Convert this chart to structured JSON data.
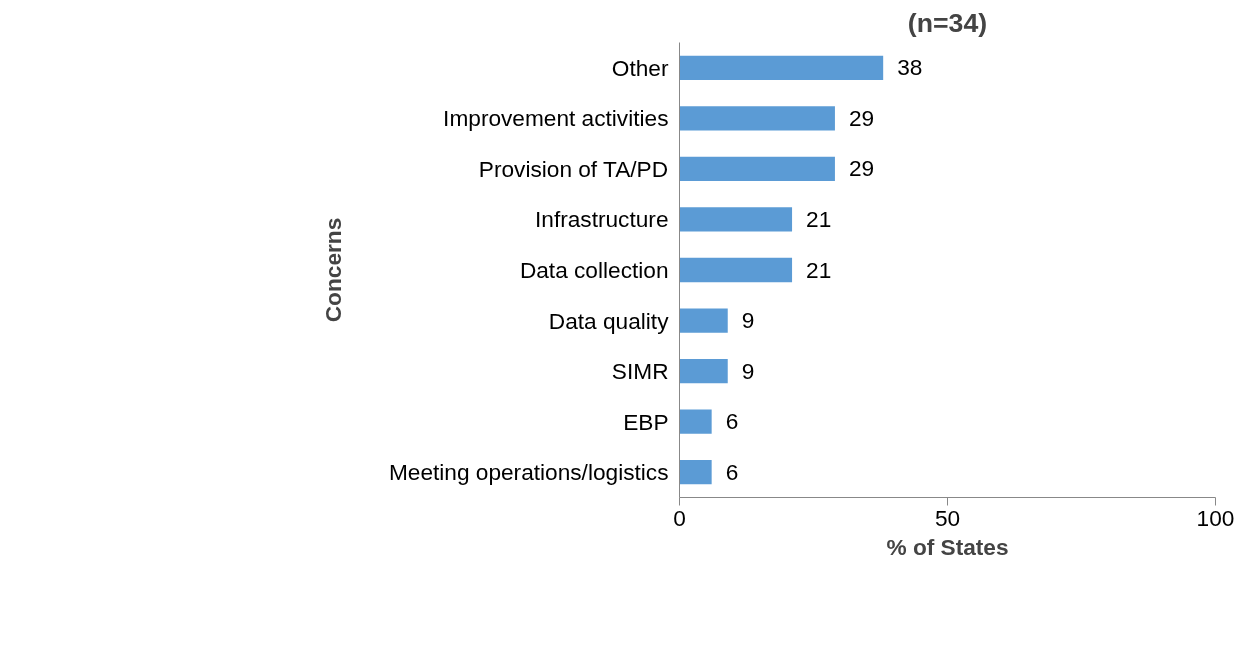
{
  "chart_data": {
    "type": "bar",
    "orientation": "horizontal",
    "title": "(n=34)",
    "xlabel": "% of States",
    "ylabel": "Concerns",
    "categories": [
      "Other",
      "Improvement activities",
      "Provision of TA/PD",
      "Infrastructure",
      "Data collection",
      "Data quality",
      "SIMR",
      "EBP",
      "Meeting operations/logistics"
    ],
    "values": [
      38,
      29,
      29,
      21,
      21,
      9,
      9,
      6,
      6
    ],
    "color": "#5b9bd5",
    "xlim": [
      0,
      100
    ],
    "xticks": [
      0,
      50,
      100
    ],
    "data_labels": true,
    "grid": false
  }
}
